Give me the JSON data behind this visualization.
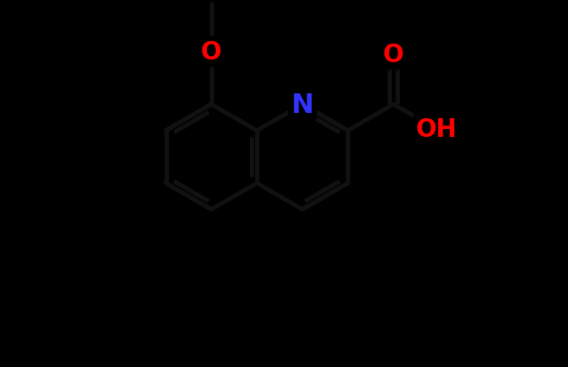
{
  "background_color": "#000000",
  "bond_color": "#111111",
  "N_color": "#3333ff",
  "O_color": "#ff0000",
  "lw": 3.5,
  "dbo": 0.12,
  "fs_N": 22,
  "fs_O": 20,
  "fs_OH": 20,
  "BL": 1.0,
  "figsize": [
    6.39,
    4.14
  ],
  "dpi": 100,
  "xlim": [
    -1.2,
    7.5
  ],
  "ylim": [
    -1.5,
    5.5
  ]
}
